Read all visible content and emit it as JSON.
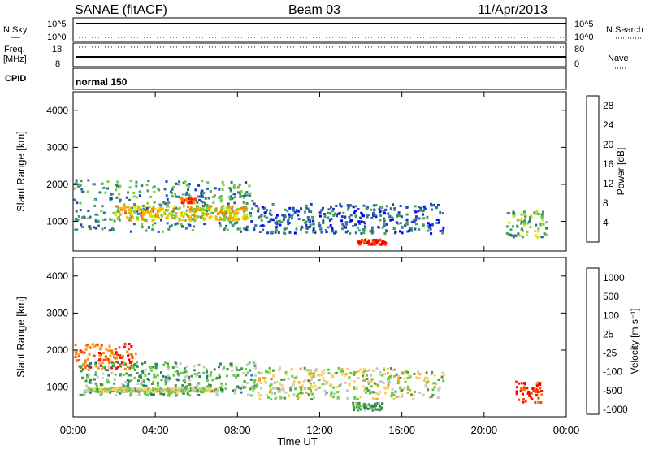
{
  "header": {
    "radar": "SANAE (fitACF)",
    "beam": "Beam 03",
    "date": "11/Apr/2013"
  },
  "strips": {
    "nsky_label": "N.Sky",
    "nsky_ticks": [
      "10^5",
      "10^0"
    ],
    "nsearch_label": "N.Search",
    "nsearch_ticks": [
      "10^5",
      "10^0"
    ],
    "freq_label_1": "Freq.",
    "freq_label_2": "[MHz]",
    "freq_ticks": [
      "18",
      "8"
    ],
    "nave_label": "Nave",
    "nave_ticks": [
      "80",
      "0"
    ],
    "cpid_label": "CPID",
    "cpid_value": "normal 150"
  },
  "colors": {
    "power": [
      "#0000ff",
      "#1f3fbf",
      "#2f6f8f",
      "#3f9f5f",
      "#6fcf3f",
      "#dfdf00",
      "#ffaf00",
      "#ff7f00",
      "#ff3f00",
      "#ff0000"
    ],
    "velocity": [
      "#1f1fbf",
      "#2f6fbf",
      "#2f7f5f",
      "#3f9f3f",
      "#5fcf3f",
      "#c8c8c8",
      "#ffcf5f",
      "#ff9f1f",
      "#ff7f00",
      "#ff3f00",
      "#ff0000"
    ]
  },
  "chart_data": [
    {
      "type": "heatmap",
      "panel": "power",
      "xlabel": "",
      "ylabel": "Slant Range [km]",
      "xlim": [
        0,
        24
      ],
      "ylim": [
        200,
        4500
      ],
      "yticks": [
        1000,
        2000,
        3000,
        4000
      ],
      "colorbar_label": "Power [dB]",
      "colorbar_ticks": [
        "4",
        "8",
        "12",
        "16",
        "20",
        "24",
        "28"
      ],
      "echo_regions": [
        {
          "t0": 0.0,
          "t1": 8.8,
          "r0": 750,
          "r1": 2150,
          "level": 0.32
        },
        {
          "t0": 2.0,
          "t1": 8.5,
          "r0": 1050,
          "r1": 1450,
          "level": 0.58
        },
        {
          "t0": 5.2,
          "t1": 5.9,
          "r0": 1500,
          "r1": 1650,
          "level": 0.85
        },
        {
          "t0": 8.8,
          "t1": 18.0,
          "r0": 700,
          "r1": 1500,
          "level": 0.22
        },
        {
          "t0": 13.8,
          "t1": 15.2,
          "r0": 400,
          "r1": 550,
          "level": 0.95
        },
        {
          "t0": 21.0,
          "t1": 23.0,
          "r0": 600,
          "r1": 1300,
          "level": 0.4
        }
      ]
    },
    {
      "type": "heatmap",
      "panel": "velocity",
      "xlabel": "Time UT",
      "ylabel": "Slant Range [km]",
      "xlim": [
        0,
        24
      ],
      "ylim": [
        200,
        4500
      ],
      "yticks": [
        1000,
        2000,
        3000,
        4000
      ],
      "xticks": [
        "00:00",
        "04:00",
        "08:00",
        "12:00",
        "16:00",
        "20:00",
        "00:00"
      ],
      "colorbar_label": "Velocity [m s⁻¹]",
      "colorbar_ticks": [
        "1000",
        "500",
        "100",
        "25",
        "-25",
        "-100",
        "-500",
        "-1000"
      ],
      "echo_regions": [
        {
          "t0": 0.0,
          "t1": 3.0,
          "r0": 1500,
          "r1": 2200,
          "level": 0.8
        },
        {
          "t0": 0.3,
          "t1": 8.8,
          "r0": 800,
          "r1": 1700,
          "level": 0.35
        },
        {
          "t0": 0.5,
          "t1": 7.0,
          "r0": 900,
          "r1": 1000,
          "level": 0.5
        },
        {
          "t0": 8.8,
          "t1": 18.0,
          "r0": 700,
          "r1": 1550,
          "level": 0.5
        },
        {
          "t0": 13.5,
          "t1": 15.0,
          "r0": 400,
          "r1": 600,
          "level": 0.38
        },
        {
          "t0": 21.5,
          "t1": 22.8,
          "r0": 600,
          "r1": 1200,
          "level": 0.95
        }
      ]
    }
  ]
}
